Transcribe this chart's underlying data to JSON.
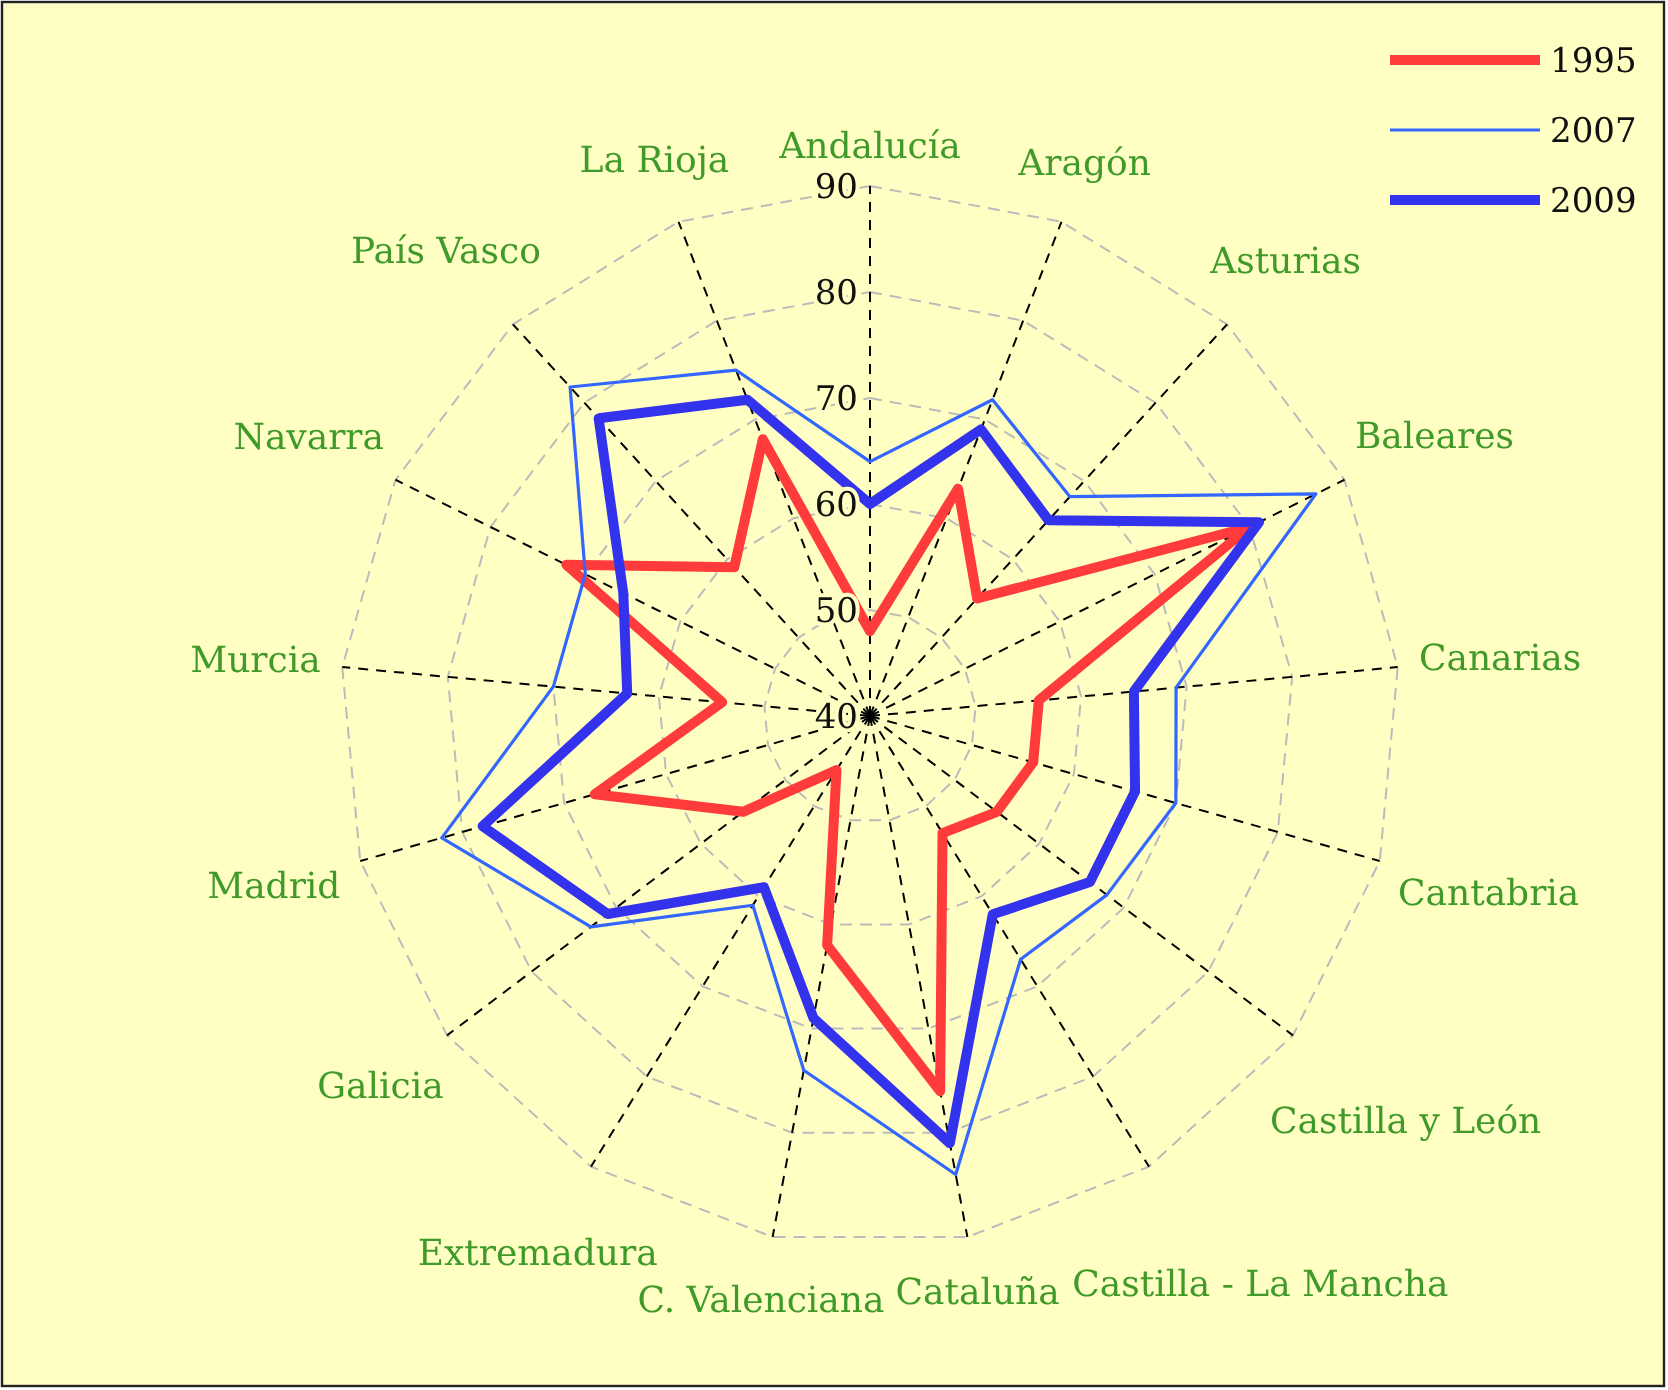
{
  "chart_data": {
    "type": "radar",
    "categories": [
      "Andalucía",
      "Aragón",
      "Asturias",
      "Baleares",
      "Canarias",
      "Cantabria",
      "Castilla y León",
      "Castilla - La Mancha",
      "Cataluña",
      "C. Valenciana",
      "Extremadura",
      "Galicia",
      "Madrid",
      "Murcia",
      "Navarra",
      "País Vasco",
      "La Rioja"
    ],
    "ylim": [
      40,
      90
    ],
    "yticks": [
      40,
      50,
      60,
      70,
      80,
      90
    ],
    "grid": true,
    "legend": "top right",
    "series": [
      {
        "name": "1995",
        "color": "#ff3b3b",
        "values": [
          48,
          63,
          55,
          80,
          56,
          56,
          55,
          53,
          76,
          62,
          46,
          55,
          67,
          54,
          72,
          59,
          68
        ]
      },
      {
        "name": "2007",
        "color": "#3366ff",
        "values": [
          64,
          72,
          68,
          87,
          69,
          70,
          68,
          67,
          84,
          74,
          61,
          73,
          82,
          70,
          70,
          82,
          75
        ]
      },
      {
        "name": "2009",
        "color": "#3333ee",
        "values": [
          60,
          69,
          65,
          81,
          65,
          66,
          66,
          62,
          81,
          69,
          59,
          71,
          78,
          63,
          66,
          78,
          72
        ]
      }
    ]
  }
}
